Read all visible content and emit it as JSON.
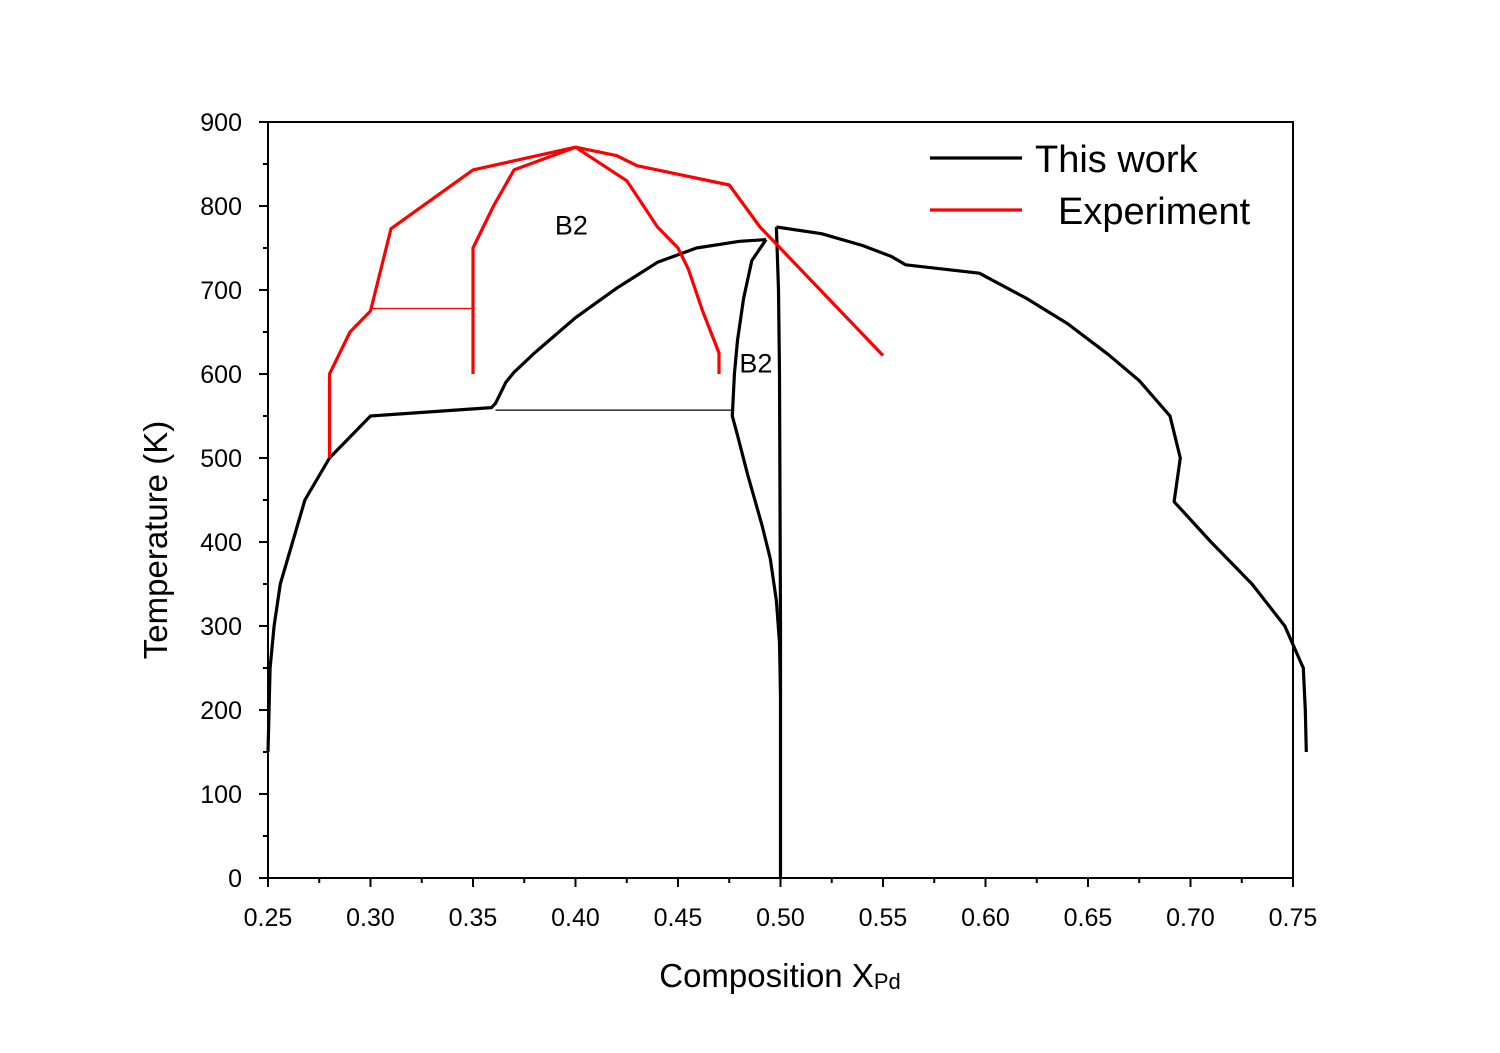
{
  "chart_data": {
    "type": "line",
    "title": "",
    "xlabel": "Composition X",
    "xlabel_sub": "Pd",
    "ylabel": "Temperature (K)",
    "xlim": [
      0.25,
      0.75
    ],
    "ylim": [
      0,
      900
    ],
    "x_ticks": [
      0.25,
      0.3,
      0.35,
      0.4,
      0.45,
      0.5,
      0.55,
      0.6,
      0.65,
      0.7,
      0.75
    ],
    "x_tick_labels": [
      "0.25",
      "0.30",
      "0.35",
      "0.40",
      "0.45",
      "0.50",
      "0.55",
      "0.60",
      "0.65",
      "0.70",
      "0.75"
    ],
    "y_ticks": [
      0,
      100,
      200,
      300,
      400,
      500,
      600,
      700,
      800,
      900
    ],
    "y_tick_labels": [
      "0",
      "100",
      "200",
      "300",
      "400",
      "500",
      "600",
      "700",
      "800",
      "900"
    ],
    "grid": false,
    "legend_position": "top-right",
    "legend": [
      {
        "label": "This work",
        "color": "#000000"
      },
      {
        "label": "Experiment",
        "color": "#ff0000"
      }
    ],
    "annotations": [
      {
        "text": "B2",
        "x": 0.398,
        "y": 766
      },
      {
        "text": "B2",
        "x": 0.488,
        "y": 602
      }
    ],
    "series": [
      {
        "group": "This work",
        "color": "#000000",
        "width": 3.2,
        "points": [
          [
            0.25,
            150
          ],
          [
            0.251,
            250
          ],
          [
            0.253,
            300
          ],
          [
            0.256,
            350
          ],
          [
            0.262,
            400
          ],
          [
            0.268,
            450
          ],
          [
            0.28,
            500
          ],
          [
            0.3,
            550
          ],
          [
            0.359,
            560
          ],
          [
            0.361,
            565
          ],
          [
            0.366,
            590
          ],
          [
            0.37,
            602
          ],
          [
            0.38,
            625
          ],
          [
            0.4,
            667
          ],
          [
            0.42,
            702
          ],
          [
            0.44,
            733
          ],
          [
            0.459,
            750
          ],
          [
            0.48,
            758
          ],
          [
            0.493,
            760
          ]
        ]
      },
      {
        "group": "This work",
        "color": "#000000",
        "width": 3.2,
        "points": [
          [
            0.493,
            760
          ],
          [
            0.486,
            735
          ],
          [
            0.482,
            690
          ],
          [
            0.479,
            640
          ],
          [
            0.4775,
            600
          ],
          [
            0.4765,
            550
          ],
          [
            0.479,
            527
          ],
          [
            0.484,
            480
          ],
          [
            0.491,
            420
          ],
          [
            0.495,
            380
          ],
          [
            0.498,
            330
          ],
          [
            0.4995,
            280
          ],
          [
            0.5,
            220
          ]
        ]
      },
      {
        "group": "This work",
        "color": "#000000",
        "width": 3.2,
        "points": [
          [
            0.5,
            0
          ],
          [
            0.5,
            300
          ],
          [
            0.4995,
            600
          ],
          [
            0.499,
            700
          ],
          [
            0.498,
            775
          ]
        ]
      },
      {
        "group": "This work",
        "color": "#000000",
        "width": 3.2,
        "points": [
          [
            0.498,
            775
          ],
          [
            0.52,
            767
          ],
          [
            0.54,
            753
          ],
          [
            0.554,
            740
          ],
          [
            0.561,
            730
          ],
          [
            0.597,
            720
          ],
          [
            0.62,
            690
          ],
          [
            0.64,
            660
          ],
          [
            0.66,
            623
          ],
          [
            0.675,
            592
          ],
          [
            0.69,
            550
          ],
          [
            0.695,
            500
          ],
          [
            0.692,
            448
          ],
          [
            0.71,
            400
          ],
          [
            0.73,
            350
          ],
          [
            0.746,
            300
          ],
          [
            0.755,
            250
          ],
          [
            0.756,
            200
          ],
          [
            0.7565,
            150
          ]
        ]
      },
      {
        "group": "This work",
        "color": "#000000",
        "width": 1.2,
        "points": [
          [
            0.361,
            557
          ],
          [
            0.4775,
            557
          ]
        ]
      },
      {
        "group": "Experiment",
        "color": "#ff0000",
        "width": 3.2,
        "points": [
          [
            0.28,
            500
          ],
          [
            0.28,
            600
          ],
          [
            0.29,
            650
          ],
          [
            0.3,
            675
          ],
          [
            0.31,
            773
          ],
          [
            0.35,
            843
          ],
          [
            0.4,
            870
          ],
          [
            0.42,
            860
          ],
          [
            0.43,
            848
          ],
          [
            0.475,
            825
          ],
          [
            0.49,
            775
          ],
          [
            0.55,
            622
          ]
        ]
      },
      {
        "group": "Experiment",
        "color": "#ff0000",
        "width": 3.2,
        "points": [
          [
            0.35,
            600
          ],
          [
            0.35,
            750
          ],
          [
            0.36,
            800
          ],
          [
            0.37,
            843
          ],
          [
            0.4,
            870
          ],
          [
            0.425,
            830
          ],
          [
            0.44,
            775
          ],
          [
            0.45,
            750
          ],
          [
            0.455,
            725
          ],
          [
            0.462,
            675
          ],
          [
            0.47,
            625
          ],
          [
            0.47,
            600
          ]
        ]
      },
      {
        "group": "Experiment",
        "color": "#ff0000",
        "width": 1.2,
        "points": [
          [
            0.3,
            678
          ],
          [
            0.35,
            678
          ]
        ]
      }
    ]
  }
}
